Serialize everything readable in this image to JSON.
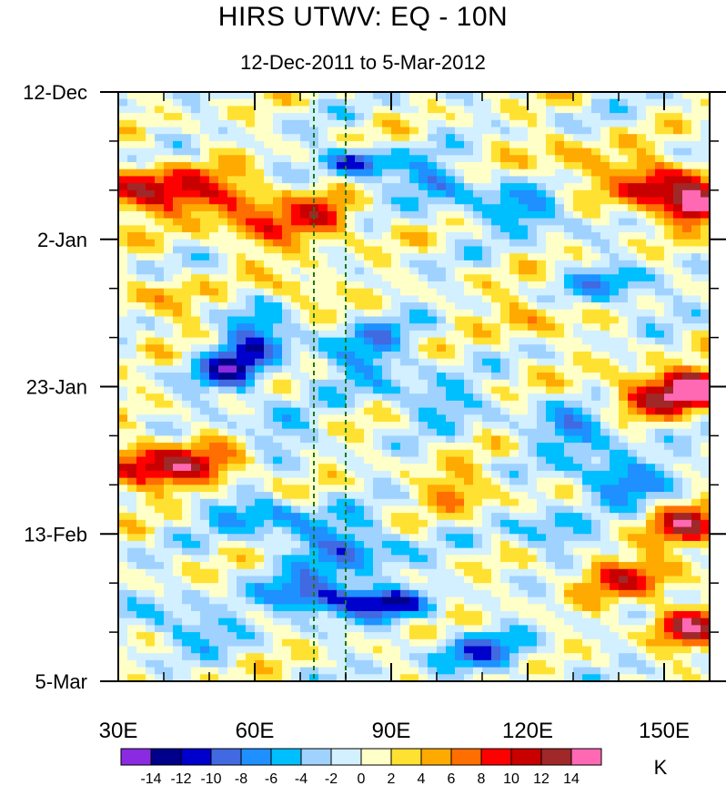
{
  "chart_data": {
    "type": "heatmap",
    "title": "HIRS UTWV: EQ - 10N",
    "subtitle": "12-Dec-2011 to 5-Mar-2012",
    "xlabel": "",
    "ylabel": "",
    "x_range": [
      30,
      160
    ],
    "x_ticks": [
      30,
      60,
      90,
      120,
      150
    ],
    "x_tick_labels": [
      "30E",
      "60E",
      "90E",
      "120E",
      "150E"
    ],
    "y_ticks": [
      0,
      21,
      42,
      63,
      84
    ],
    "y_tick_labels": [
      "12-Dec",
      "2-Jan",
      "23-Jan",
      "13-Feb",
      "5-Mar"
    ],
    "y_range_days": [
      0,
      84
    ],
    "reference_lines_lon": [
      73,
      80
    ],
    "colorbar": {
      "unit": "K",
      "labels": [
        "-14",
        "-12",
        "-10",
        "-8",
        "-6",
        "-4",
        "-2",
        "0",
        "2",
        "4",
        "6",
        "8",
        "10",
        "12",
        "14"
      ],
      "colors": [
        "#8a2be2",
        "#00008b",
        "#0000cd",
        "#4169e1",
        "#1e90ff",
        "#00bfff",
        "#a0d2ff",
        "#d2f0ff",
        "#ffffc8",
        "#ffe132",
        "#ffaa00",
        "#ff6e00",
        "#ff0000",
        "#c80000",
        "#a02828",
        "#ff69b4"
      ]
    }
  }
}
